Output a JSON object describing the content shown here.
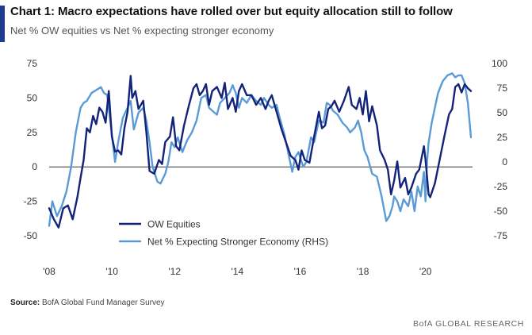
{
  "header": {
    "title": "Chart 1: Macro expectations have rolled over but equity allocation still to follow",
    "subtitle": "Net % OW equities vs Net % expecting stronger economy"
  },
  "footer": {
    "source_label": "Source:",
    "source_text": "BofA Global Fund Manager Survey",
    "brand": "BofA GLOBAL RESEARCH"
  },
  "colors": {
    "accent": "#1f3b8f",
    "series_dark": "#14237a",
    "series_light": "#5b9bd5"
  },
  "chart_data": {
    "type": "line",
    "x_axis": {
      "range": [
        2008.0,
        2021.5
      ],
      "ticks": [
        "'08",
        "'10",
        "'12",
        "'14",
        "'16",
        "'18",
        "'20"
      ],
      "tick_values": [
        2008,
        2010,
        2012,
        2014,
        2016,
        2018,
        2020
      ]
    },
    "y_left": {
      "range": [
        -50,
        75
      ],
      "ticks": [
        -50,
        -25,
        0,
        25,
        50,
        75
      ]
    },
    "y_right": {
      "range": [
        -75,
        100
      ],
      "ticks": [
        -75,
        -50,
        -25,
        0,
        25,
        50,
        75,
        100
      ]
    },
    "grid": false,
    "zero_line": true,
    "legend_position": "bottom-left",
    "series": [
      {
        "name": "OW Equities",
        "axis": "left",
        "color": "#14237a",
        "points": [
          [
            2008.0,
            -30
          ],
          [
            2008.15,
            -38
          ],
          [
            2008.3,
            -44
          ],
          [
            2008.45,
            -30
          ],
          [
            2008.6,
            -28
          ],
          [
            2008.75,
            -38
          ],
          [
            2008.9,
            -22
          ],
          [
            2009.0,
            -8
          ],
          [
            2009.1,
            5
          ],
          [
            2009.2,
            28
          ],
          [
            2009.3,
            25
          ],
          [
            2009.4,
            37
          ],
          [
            2009.5,
            31
          ],
          [
            2009.6,
            43
          ],
          [
            2009.7,
            40
          ],
          [
            2009.8,
            32
          ],
          [
            2009.9,
            55
          ],
          [
            2010.0,
            22
          ],
          [
            2010.1,
            11
          ],
          [
            2010.2,
            12
          ],
          [
            2010.3,
            9
          ],
          [
            2010.4,
            28
          ],
          [
            2010.5,
            40
          ],
          [
            2010.6,
            66
          ],
          [
            2010.65,
            50
          ],
          [
            2010.75,
            55
          ],
          [
            2010.85,
            42
          ],
          [
            2011.0,
            48
          ],
          [
            2011.1,
            25
          ],
          [
            2011.2,
            -3
          ],
          [
            2011.35,
            -5
          ],
          [
            2011.5,
            5
          ],
          [
            2011.6,
            2
          ],
          [
            2011.7,
            18
          ],
          [
            2011.85,
            22
          ],
          [
            2011.95,
            36
          ],
          [
            2012.05,
            15
          ],
          [
            2012.15,
            12
          ],
          [
            2012.3,
            30
          ],
          [
            2012.45,
            44
          ],
          [
            2012.6,
            57
          ],
          [
            2012.7,
            60
          ],
          [
            2012.8,
            52
          ],
          [
            2012.9,
            55
          ],
          [
            2013.0,
            60
          ],
          [
            2013.1,
            45
          ],
          [
            2013.2,
            55
          ],
          [
            2013.35,
            58
          ],
          [
            2013.5,
            50
          ],
          [
            2013.6,
            61
          ],
          [
            2013.7,
            42
          ],
          [
            2013.85,
            50
          ],
          [
            2013.95,
            40
          ],
          [
            2014.05,
            55
          ],
          [
            2014.15,
            60
          ],
          [
            2014.3,
            52
          ],
          [
            2014.45,
            52
          ],
          [
            2014.6,
            45
          ],
          [
            2014.75,
            50
          ],
          [
            2014.9,
            42
          ],
          [
            2015.0,
            48
          ],
          [
            2015.1,
            52
          ],
          [
            2015.25,
            40
          ],
          [
            2015.4,
            28
          ],
          [
            2015.55,
            18
          ],
          [
            2015.7,
            8
          ],
          [
            2015.85,
            5
          ],
          [
            2015.95,
            -2
          ],
          [
            2016.05,
            12
          ],
          [
            2016.15,
            5
          ],
          [
            2016.3,
            3
          ],
          [
            2016.45,
            22
          ],
          [
            2016.6,
            40
          ],
          [
            2016.7,
            28
          ],
          [
            2016.8,
            30
          ],
          [
            2016.9,
            42
          ],
          [
            2017.0,
            44
          ],
          [
            2017.1,
            48
          ],
          [
            2017.25,
            40
          ],
          [
            2017.4,
            48
          ],
          [
            2017.55,
            58
          ],
          [
            2017.65,
            45
          ],
          [
            2017.8,
            42
          ],
          [
            2017.9,
            50
          ],
          [
            2018.0,
            38
          ],
          [
            2018.1,
            55
          ],
          [
            2018.2,
            33
          ],
          [
            2018.3,
            44
          ],
          [
            2018.45,
            30
          ],
          [
            2018.55,
            12
          ],
          [
            2018.7,
            5
          ],
          [
            2018.8,
            -2
          ],
          [
            2018.9,
            -20
          ],
          [
            2019.0,
            -10
          ],
          [
            2019.1,
            4
          ],
          [
            2019.2,
            -15
          ],
          [
            2019.35,
            -8
          ],
          [
            2019.45,
            -20
          ],
          [
            2019.55,
            -15
          ],
          [
            2019.7,
            -5
          ],
          [
            2019.8,
            -2
          ],
          [
            2019.95,
            15
          ],
          [
            2020.0,
            5
          ],
          [
            2020.1,
            -20
          ],
          [
            2020.15,
            -22
          ],
          [
            2020.3,
            -12
          ],
          [
            2020.45,
            5
          ],
          [
            2020.6,
            22
          ],
          [
            2020.75,
            38
          ],
          [
            2020.85,
            42
          ],
          [
            2020.95,
            58
          ],
          [
            2021.05,
            60
          ],
          [
            2021.15,
            54
          ],
          [
            2021.25,
            60
          ],
          [
            2021.35,
            57
          ],
          [
            2021.45,
            55
          ]
        ]
      },
      {
        "name": "Net % Expecting Stronger Economy (RHS)",
        "axis": "right",
        "color": "#5b9bd5",
        "points": [
          [
            2008.0,
            -65
          ],
          [
            2008.1,
            -40
          ],
          [
            2008.25,
            -55
          ],
          [
            2008.4,
            -45
          ],
          [
            2008.55,
            -30
          ],
          [
            2008.7,
            -5
          ],
          [
            2008.85,
            30
          ],
          [
            2009.0,
            55
          ],
          [
            2009.1,
            60
          ],
          [
            2009.2,
            62
          ],
          [
            2009.35,
            70
          ],
          [
            2009.5,
            73
          ],
          [
            2009.65,
            76
          ],
          [
            2009.75,
            70
          ],
          [
            2009.85,
            68
          ],
          [
            2010.0,
            28
          ],
          [
            2010.1,
            0
          ],
          [
            2010.2,
            20
          ],
          [
            2010.35,
            45
          ],
          [
            2010.5,
            55
          ],
          [
            2010.6,
            62
          ],
          [
            2010.7,
            33
          ],
          [
            2010.85,
            50
          ],
          [
            2011.0,
            55
          ],
          [
            2011.1,
            42
          ],
          [
            2011.2,
            20
          ],
          [
            2011.3,
            -5
          ],
          [
            2011.45,
            -20
          ],
          [
            2011.55,
            -22
          ],
          [
            2011.7,
            -12
          ],
          [
            2011.8,
            0
          ],
          [
            2011.9,
            20
          ],
          [
            2012.0,
            15
          ],
          [
            2012.1,
            25
          ],
          [
            2012.25,
            10
          ],
          [
            2012.4,
            22
          ],
          [
            2012.55,
            30
          ],
          [
            2012.7,
            42
          ],
          [
            2012.85,
            65
          ],
          [
            2013.0,
            68
          ],
          [
            2013.1,
            55
          ],
          [
            2013.2,
            52
          ],
          [
            2013.35,
            48
          ],
          [
            2013.45,
            60
          ],
          [
            2013.6,
            65
          ],
          [
            2013.75,
            70
          ],
          [
            2013.85,
            78
          ],
          [
            2013.95,
            70
          ],
          [
            2014.05,
            55
          ],
          [
            2014.15,
            65
          ],
          [
            2014.3,
            60
          ],
          [
            2014.45,
            68
          ],
          [
            2014.6,
            62
          ],
          [
            2014.75,
            58
          ],
          [
            2014.85,
            65
          ],
          [
            2015.0,
            58
          ],
          [
            2015.1,
            55
          ],
          [
            2015.25,
            58
          ],
          [
            2015.35,
            45
          ],
          [
            2015.5,
            28
          ],
          [
            2015.65,
            5
          ],
          [
            2015.75,
            -10
          ],
          [
            2015.85,
            5
          ],
          [
            2015.95,
            10
          ],
          [
            2016.1,
            -5
          ],
          [
            2016.2,
            0
          ],
          [
            2016.35,
            25
          ],
          [
            2016.45,
            20
          ],
          [
            2016.6,
            42
          ],
          [
            2016.75,
            40
          ],
          [
            2016.85,
            60
          ],
          [
            2016.95,
            58
          ],
          [
            2017.05,
            52
          ],
          [
            2017.2,
            48
          ],
          [
            2017.35,
            40
          ],
          [
            2017.5,
            35
          ],
          [
            2017.6,
            30
          ],
          [
            2017.75,
            35
          ],
          [
            2017.85,
            42
          ],
          [
            2017.95,
            30
          ],
          [
            2018.05,
            12
          ],
          [
            2018.15,
            5
          ],
          [
            2018.3,
            -12
          ],
          [
            2018.45,
            -15
          ],
          [
            2018.6,
            -35
          ],
          [
            2018.75,
            -60
          ],
          [
            2018.85,
            -55
          ],
          [
            2018.95,
            -45
          ],
          [
            2019.0,
            -35
          ],
          [
            2019.1,
            -40
          ],
          [
            2019.2,
            -50
          ],
          [
            2019.3,
            -38
          ],
          [
            2019.45,
            -45
          ],
          [
            2019.55,
            -30
          ],
          [
            2019.65,
            -50
          ],
          [
            2019.75,
            -25
          ],
          [
            2019.85,
            -35
          ],
          [
            2019.95,
            -10
          ],
          [
            2020.0,
            -40
          ],
          [
            2020.05,
            0
          ],
          [
            2020.1,
            20
          ],
          [
            2020.2,
            40
          ],
          [
            2020.3,
            55
          ],
          [
            2020.4,
            70
          ],
          [
            2020.55,
            82
          ],
          [
            2020.7,
            88
          ],
          [
            2020.85,
            90
          ],
          [
            2020.95,
            86
          ],
          [
            2021.05,
            88
          ],
          [
            2021.15,
            88
          ],
          [
            2021.25,
            80
          ],
          [
            2021.35,
            60
          ],
          [
            2021.45,
            25
          ]
        ]
      }
    ]
  }
}
